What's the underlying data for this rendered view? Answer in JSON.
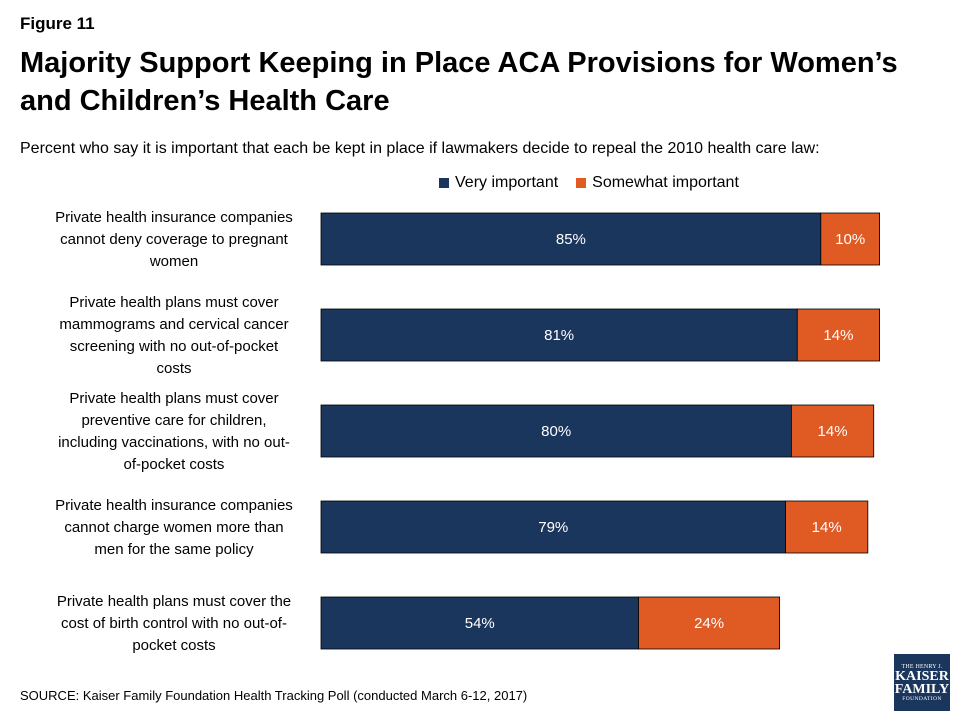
{
  "figure_label": "Figure 11",
  "colors": {
    "very": "#1b365d",
    "somewhat": "#e05a24",
    "logo_bg": "#1b365d"
  },
  "logo": {
    "line1": "THE HENRY J.",
    "line2": "KAISER",
    "line3": "FAMILY",
    "line4": "FOUNDATION"
  },
  "source": "SOURCE: Kaiser Family Foundation Health Tracking Poll (conducted March 6-12, 2017)",
  "chart_data": {
    "type": "bar",
    "orientation": "horizontal",
    "stacked": true,
    "title": "Majority Support Keeping in Place ACA Provisions for Women’s and Children’s Health Care",
    "subtitle": "Percent who say it is important that each be kept in place if lawmakers decide to repeal the 2010 health care law:",
    "legend_position": "top",
    "grid": false,
    "xlim": [
      0,
      100
    ],
    "categories": [
      "Private health insurance companies cannot deny coverage to pregnant women",
      "Private health plans must cover mammograms and cervical cancer screening with no out-of-pocket costs",
      "Private health plans must cover preventive care for children, including vaccinations, with no out-of-pocket costs",
      "Private health insurance companies cannot charge women more than men for the same policy",
      "Private health plans must cover the cost of birth control with no out-of-pocket costs"
    ],
    "series": [
      {
        "name": "Very important",
        "values": [
          85,
          81,
          80,
          79,
          54
        ],
        "labels": [
          "85%",
          "81%",
          "80%",
          "79%",
          "54%"
        ]
      },
      {
        "name": "Somewhat important",
        "values": [
          10,
          14,
          14,
          14,
          24
        ],
        "labels": [
          "10%",
          "14%",
          "14%",
          "14%",
          "24%"
        ]
      }
    ]
  }
}
